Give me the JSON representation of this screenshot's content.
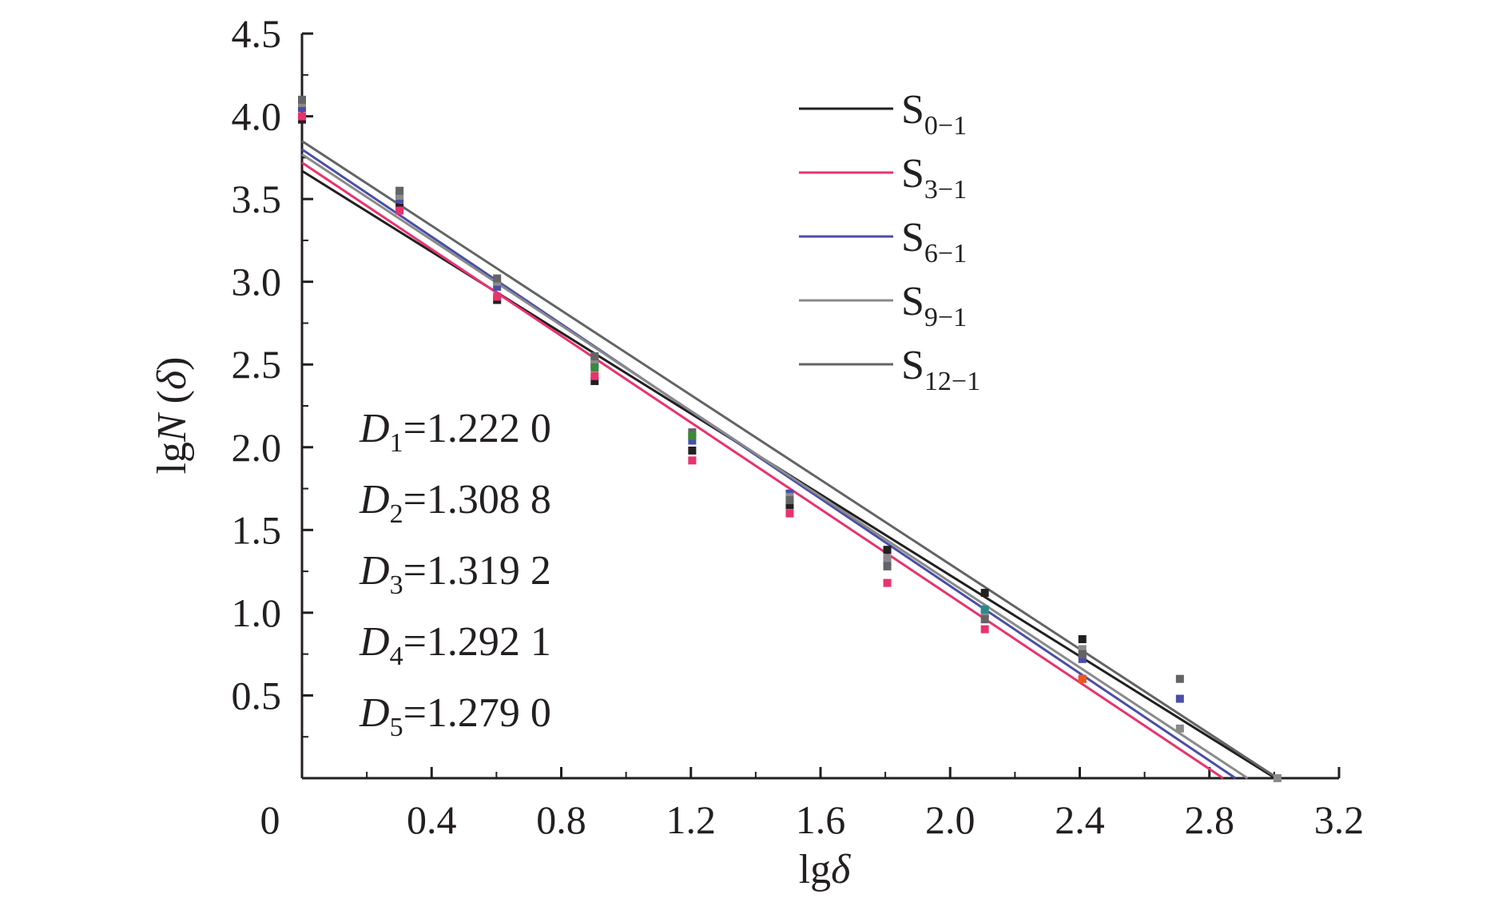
{
  "chart_data": {
    "type": "scatter",
    "xlabel": {
      "main": "lg",
      "italic": "δ"
    },
    "ylabel": {
      "main": "lg",
      "italic": "N",
      "paren_open": " (",
      "paren_var": "δ",
      "paren_close": ")"
    },
    "xlim": [
      0,
      3.2
    ],
    "ylim": [
      0,
      4.5
    ],
    "x_ticks": [
      0,
      0.4,
      0.8,
      1.2,
      1.6,
      2.0,
      2.4,
      2.8,
      3.2
    ],
    "x_tick_labels": [
      "0",
      "0.4",
      "0.8",
      "1.2",
      "1.6",
      "2.0",
      "2.4",
      "2.8",
      "3.2"
    ],
    "y_ticks": [
      0.5,
      1.0,
      1.5,
      2.0,
      2.5,
      3.0,
      3.5,
      4.0,
      4.5
    ],
    "y_tick_labels": [
      "0.5",
      "1.0",
      "1.5",
      "2.0",
      "2.5",
      "3.0",
      "3.5",
      "4.0",
      "4.5"
    ],
    "legend_position": "top-right",
    "series": [
      {
        "name": "S0−1",
        "name_main": "S",
        "name_sub": "0−1",
        "color": "#231f20",
        "fit": {
          "intercept": 3.67,
          "slope": -1.222
        },
        "x": [
          0,
          0.301,
          0.602,
          0.903,
          1.204,
          1.505,
          1.806,
          2.107,
          2.408
        ],
        "y": [
          3.98,
          3.45,
          2.89,
          2.4,
          1.98,
          1.65,
          1.38,
          1.12,
          0.84
        ]
      },
      {
        "name": "S3−1",
        "name_main": "S",
        "name_sub": "3−1",
        "color": "#e8336e",
        "fit": {
          "intercept": 3.72,
          "slope": -1.3088
        },
        "x": [
          0,
          0.301,
          0.602,
          0.903,
          1.204,
          1.505,
          1.806,
          2.107,
          2.408
        ],
        "y": [
          4.0,
          3.43,
          2.91,
          2.43,
          1.92,
          1.6,
          1.18,
          0.9,
          0.6
        ]
      },
      {
        "name": "S6−1",
        "name_main": "S",
        "name_sub": "6−1",
        "color": "#4a4ea8",
        "fit": {
          "intercept": 3.8,
          "slope": -1.3192
        },
        "x": [
          0,
          0.301,
          0.602,
          0.903,
          1.204,
          1.505,
          1.806,
          2.107,
          2.408,
          2.709
        ],
        "y": [
          4.05,
          3.5,
          2.97,
          2.5,
          2.04,
          1.72,
          1.31,
          0.99,
          0.72,
          0.48
        ]
      },
      {
        "name": "S9−1",
        "name_main": "S",
        "name_sub": "9−1",
        "color": "#8a8a8a",
        "fit": {
          "intercept": 3.77,
          "slope": -1.2921
        },
        "x": [
          0,
          0.301,
          0.602,
          0.903,
          1.204,
          1.505,
          1.806,
          2.107,
          2.408,
          2.709,
          3.01
        ],
        "y": [
          4.08,
          3.52,
          3.0,
          2.53,
          2.07,
          1.7,
          1.33,
          1.0,
          0.78,
          0.3,
          0.0
        ]
      },
      {
        "name": "S12−1",
        "name_main": "S",
        "name_sub": "12−1",
        "color": "#626466",
        "fit": {
          "intercept": 3.85,
          "slope": -1.279
        },
        "x": [
          0,
          0.301,
          0.602,
          0.903,
          1.204,
          1.505,
          1.806,
          2.107,
          2.408,
          2.709
        ],
        "y": [
          4.1,
          3.55,
          3.02,
          2.55,
          2.09,
          1.68,
          1.28,
          0.96,
          0.75,
          0.6
        ]
      }
    ],
    "annotations": [
      {
        "var": "D",
        "sub": "1",
        "value": "=1.222 0"
      },
      {
        "var": "D",
        "sub": "2",
        "value": "=1.308 8"
      },
      {
        "var": "D",
        "sub": "3",
        "value": "=1.319 2"
      },
      {
        "var": "D",
        "sub": "4",
        "value": "=1.292 1"
      },
      {
        "var": "D",
        "sub": "5",
        "value": "=1.279 0"
      }
    ],
    "colors": {
      "axis": "#231f20",
      "marker_green": "#3a8a3a",
      "marker_teal": "#2a8a8a",
      "marker_orange": "#e85a1a"
    }
  }
}
